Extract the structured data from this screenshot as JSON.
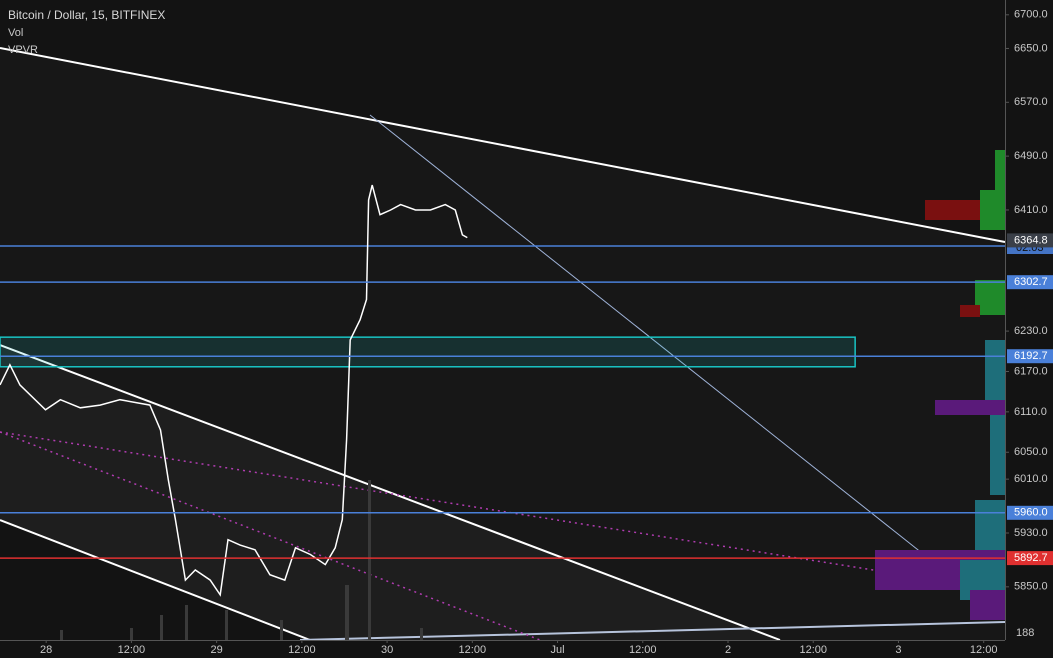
{
  "chart_data": {
    "type": "line",
    "title": "Bitcoin / Dollar, 15, BITFINEX",
    "indicators": [
      "Vol",
      "VPVR"
    ],
    "color": "#ffffff",
    "x": [
      -6.5,
      -5.1,
      -3.7,
      -0.1,
      2.0,
      4.8,
      7.6,
      10.4,
      14.6,
      16.1,
      17.2,
      18.2,
      19.6,
      21.0,
      23.1,
      24.5,
      25.6,
      27.3,
      29.4,
      31.5,
      33.6,
      35.1,
      37.2,
      39.3,
      40.7,
      41.7,
      42.3,
      42.8,
      44.2,
      45.1,
      45.4,
      45.9,
      47.0,
      48.5,
      49.9,
      52.0,
      54.1,
      56.2,
      57.6,
      58.6,
      59.3
    ],
    "values": [
      6150,
      6180,
      6150,
      6113,
      6128,
      6116,
      6120,
      6128,
      6120,
      6083,
      6009,
      5950,
      5860,
      5875,
      5860,
      5838,
      5920,
      5912,
      5905,
      5868,
      5860,
      5908,
      5898,
      5883,
      5908,
      5950,
      6069,
      6217,
      6247,
      6277,
      6425,
      6447,
      6403,
      6410,
      6418,
      6410,
      6410,
      6418,
      6410,
      6373,
      6369
    ],
    "xlim": [
      -6.5,
      135
    ],
    "xticks": [
      {
        "value": 0,
        "label": "28"
      },
      {
        "value": 12,
        "label": "12:00"
      },
      {
        "value": 24,
        "label": "29"
      },
      {
        "value": 36,
        "label": "12:00"
      },
      {
        "value": 48,
        "label": "30"
      },
      {
        "value": 60,
        "label": "12:00"
      },
      {
        "value": 72,
        "label": "Jul"
      },
      {
        "value": 84,
        "label": "12:00"
      },
      {
        "value": 96,
        "label": "2"
      },
      {
        "value": 108,
        "label": "12:00"
      },
      {
        "value": 120,
        "label": "3"
      },
      {
        "value": 132,
        "label": "12:00"
      }
    ],
    "ylim": [
      5771,
      6722
    ],
    "yticks": [
      {
        "value": 6700,
        "label": "6700.0"
      },
      {
        "value": 6650,
        "label": "6650.0"
      },
      {
        "value": 6570,
        "label": "6570.0"
      },
      {
        "value": 6490,
        "label": "6490.0"
      },
      {
        "value": 6410,
        "label": "6410.0"
      },
      {
        "value": 6230,
        "label": "6230.0"
      },
      {
        "value": 6170,
        "label": "6170.0"
      },
      {
        "value": 6110,
        "label": "6110.0"
      },
      {
        "value": 6050,
        "label": "6050.0"
      },
      {
        "value": 6010,
        "label": "6010.0"
      },
      {
        "value": 5930,
        "label": "5930.0"
      },
      {
        "value": 5850,
        "label": "5850.0"
      }
    ],
    "levels": [
      {
        "value": 6364.8,
        "color": "#3a3f48"
      },
      {
        "value": 6302.7,
        "color": "#4a80d9"
      },
      {
        "value": 6192.7,
        "color": "#4a80d9"
      },
      {
        "value": {
          "value": 5960,
          "label": "5960.0"
        },
        "color": "#4a80d9"
      },
      {
        "value": 5892.7,
        "color": "#e03030"
      }
    ],
    "zone": {
      "low": 6177,
      "high": 6221,
      "end": 113.9,
      "color": "#19c4c4"
    },
    "countdown": "02:03",
    "volume_label": 188
  }
}
